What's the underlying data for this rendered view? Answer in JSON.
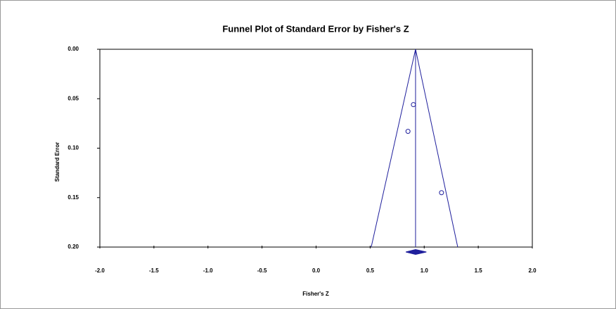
{
  "chart_data": {
    "type": "funnel-scatter",
    "title": "Funnel Plot of Standard Error by Fisher's Z",
    "x_label": "Fisher's Z",
    "y_label": "Standard Error",
    "x": [
      0.9,
      0.85,
      1.16
    ],
    "values": [
      0.056,
      0.083,
      0.145
    ],
    "color": "#1f1f9c",
    "xlim": [
      -2.0,
      2.0
    ],
    "ylim": [
      0.0,
      0.2
    ],
    "y_inverted": true,
    "xticks": [
      {
        "value": -2.0,
        "label": "-2.0"
      },
      {
        "value": -1.5,
        "label": "-1.5"
      },
      {
        "value": -1.0,
        "label": "-1.0"
      },
      {
        "value": -0.5,
        "label": "-0.5"
      },
      {
        "value": 0.0,
        "label": "0.0"
      },
      {
        "value": 0.5,
        "label": "0.5"
      },
      {
        "value": 1.0,
        "label": "1.0"
      },
      {
        "value": 1.5,
        "label": "1.5"
      },
      {
        "value": 2.0,
        "label": "2.0"
      }
    ],
    "yticks": [
      {
        "value": 0.0,
        "label": "0.00"
      },
      {
        "value": 0.05,
        "label": "0.05"
      },
      {
        "value": 0.1,
        "label": "0.10"
      },
      {
        "value": 0.15,
        "label": "0.15"
      },
      {
        "value": 0.2,
        "label": "0.20"
      }
    ],
    "funnel": {
      "center": 0.92,
      "lower_at_max": 0.51,
      "upper_at_max": 1.31
    },
    "summary": {
      "estimate": 0.92,
      "lower": 0.83,
      "upper": 1.02
    }
  }
}
